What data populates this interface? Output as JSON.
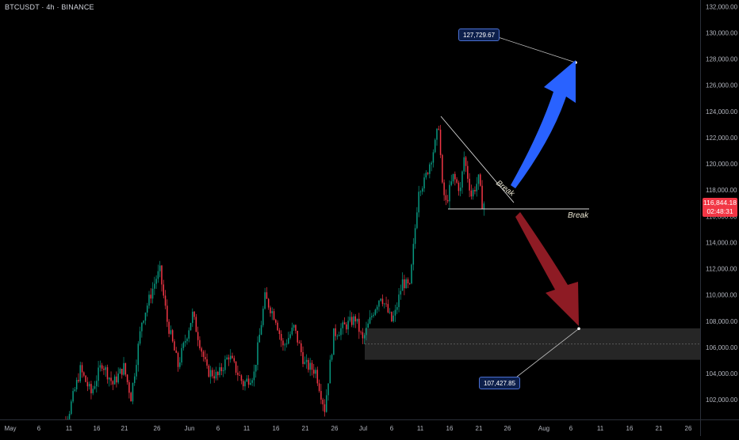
{
  "header": {
    "symbol": "BTCUSDT · 4h · BINANCE"
  },
  "current_price": {
    "price": "116,844.18",
    "countdown": "02:48:31",
    "value": 116844.18,
    "color": "#f23645"
  },
  "annotations": {
    "target_up": {
      "label": "127,729.67",
      "value": 127729.67
    },
    "target_down": {
      "label": "107,427.85",
      "value": 107427.85
    },
    "break_upper": "Break",
    "break_lower": "Break",
    "arrow_up_color": "#2962ff",
    "arrow_down_color": "#8e1b24"
  },
  "zone": {
    "top": 107450,
    "bottom": 105050,
    "mid": 106250
  },
  "chart_data": {
    "type": "candlestick",
    "interval": "4h",
    "ylim": [
      100500,
      132500
    ],
    "yticks": [
      "102,000.00",
      "104,000.00",
      "106,000.00",
      "108,000.00",
      "110,000.00",
      "112,000.00",
      "114,000.00",
      "116,000.00",
      "118,000.00",
      "120,000.00",
      "122,000.00",
      "124,000.00",
      "126,000.00",
      "128,000.00",
      "130,000.00",
      "132,000.00"
    ],
    "xticks": [
      "May",
      "6",
      "11",
      "16",
      "21",
      "26",
      "Jun",
      "6",
      "11",
      "16",
      "21",
      "26",
      "Jul",
      "6",
      "11",
      "16",
      "21",
      "26",
      "Aug",
      "6",
      "11",
      "16",
      "21",
      "26"
    ],
    "up_color": "#089981",
    "down_color": "#f23645",
    "keypoints": [
      [
        0,
        97800
      ],
      [
        10,
        101200
      ],
      [
        16,
        104300
      ],
      [
        22,
        102500
      ],
      [
        28,
        104800
      ],
      [
        34,
        103200
      ],
      [
        40,
        104500
      ],
      [
        44,
        102200
      ],
      [
        50,
        108000
      ],
      [
        58,
        111300
      ],
      [
        60,
        111800
      ],
      [
        64,
        108000
      ],
      [
        70,
        104600
      ],
      [
        78,
        108500
      ],
      [
        86,
        104200
      ],
      [
        92,
        103800
      ],
      [
        98,
        105400
      ],
      [
        106,
        103200
      ],
      [
        112,
        104000
      ],
      [
        118,
        109800
      ],
      [
        124,
        108200
      ],
      [
        128,
        106000
      ],
      [
        134,
        107500
      ],
      [
        140,
        104700
      ],
      [
        146,
        104200
      ],
      [
        151,
        101300
      ],
      [
        156,
        107000
      ],
      [
        164,
        107800
      ],
      [
        168,
        108200
      ],
      [
        172,
        106500
      ],
      [
        178,
        108800
      ],
      [
        182,
        110000
      ],
      [
        188,
        108000
      ],
      [
        190,
        108600
      ],
      [
        194,
        111000
      ],
      [
        198,
        110500
      ],
      [
        203,
        118200
      ],
      [
        206,
        118600
      ],
      [
        212,
        121500
      ],
      [
        214,
        123000
      ],
      [
        216,
        118200
      ],
      [
        218,
        117000
      ],
      [
        222,
        119000
      ],
      [
        226,
        118000
      ],
      [
        228,
        120500
      ],
      [
        232,
        117600
      ],
      [
        236,
        118800
      ],
      [
        238,
        117000
      ]
    ],
    "candle_count": 239
  }
}
